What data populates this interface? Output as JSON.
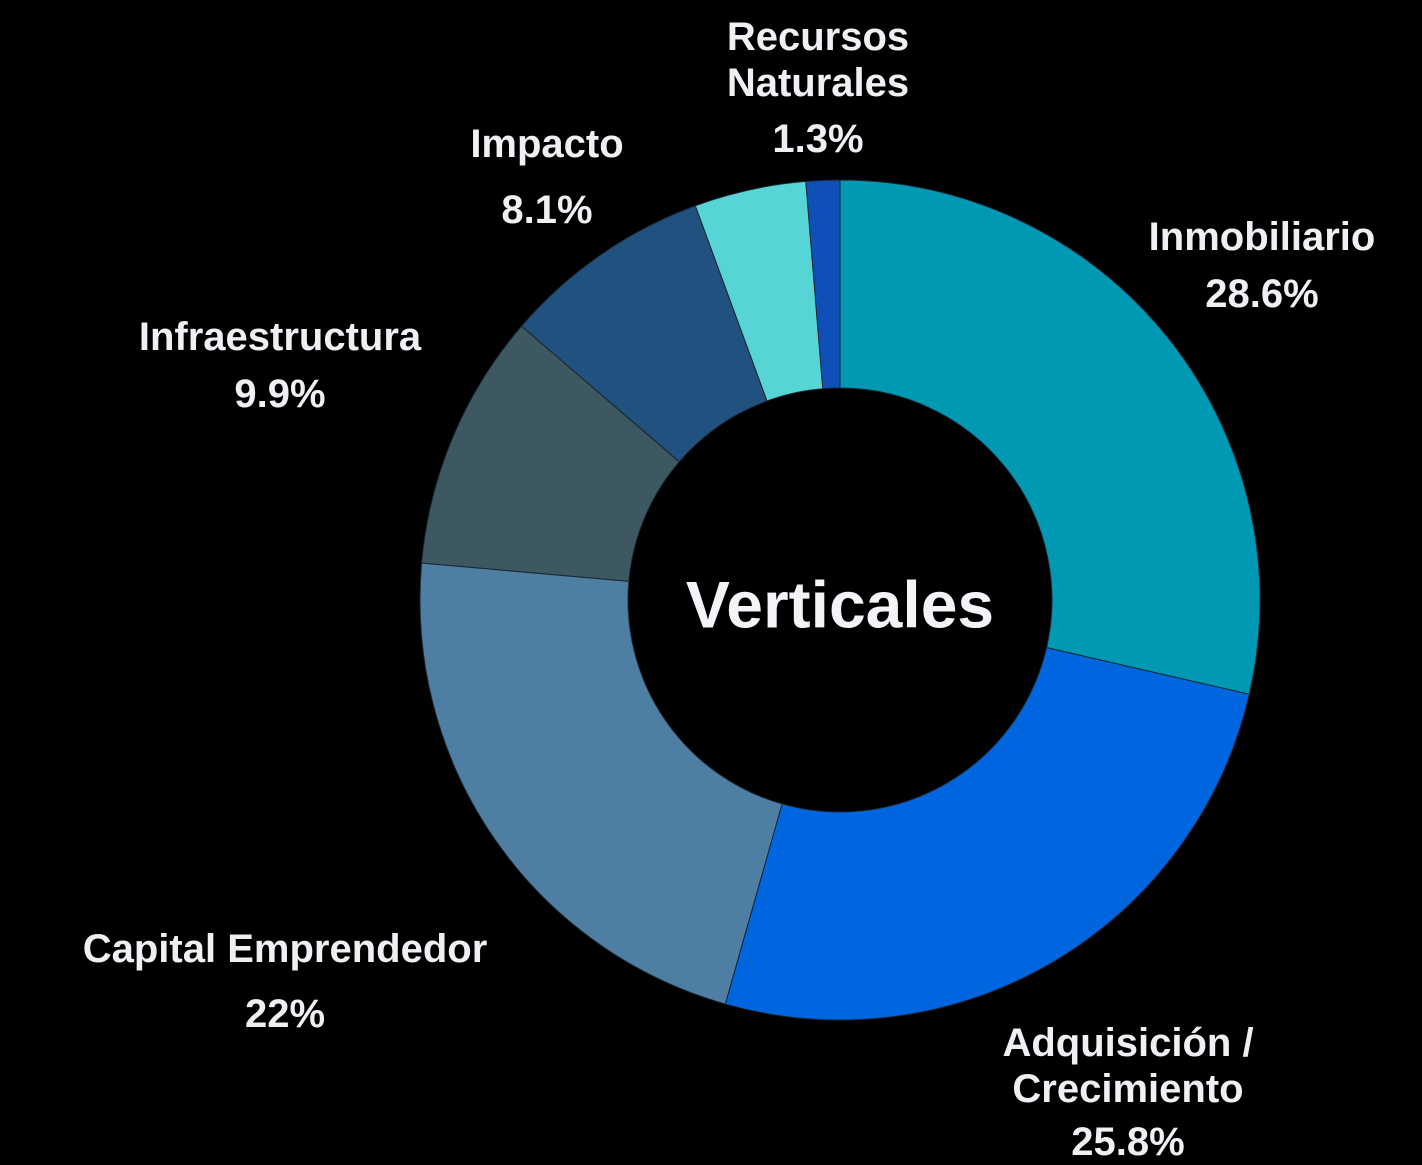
{
  "chart_data": {
    "type": "donut",
    "title": "Verticales",
    "categories": [
      "Inmobiliario",
      "Adquisición / Crecimiento",
      "Capital Emprendedor",
      "Infraestructura",
      "Impacto",
      null,
      "Recursos Naturales"
    ],
    "values": [
      28.6,
      25.8,
      22,
      9.9,
      8.1,
      4.3,
      1.3
    ],
    "value_labels": [
      "28.6%",
      "25.8%",
      "22%",
      "9.9%",
      "8.1%",
      null,
      "1.3%"
    ],
    "colors": [
      "#0099b4",
      "#0066e0",
      "#4f7ea3",
      "#3d5860",
      "#21527f",
      "#56d4d6",
      "#0f4fb8"
    ]
  }
}
